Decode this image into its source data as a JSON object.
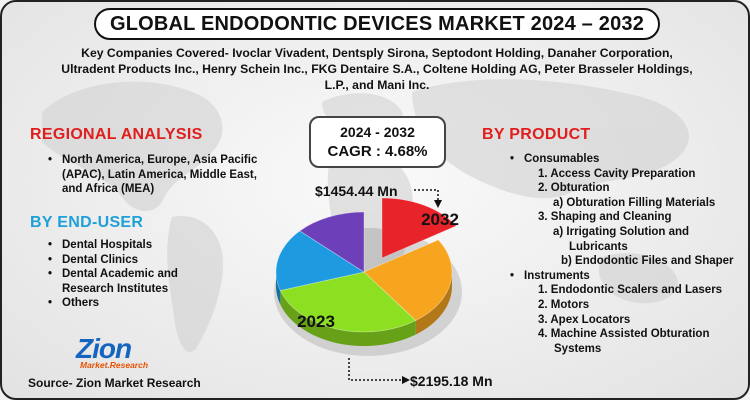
{
  "title": "GLOBAL ENDODONTIC DEVICES MARKET 2024 – 2032",
  "companies_line1": "Key Companies Covered- Ivoclar Vivadent, Dentsply Sirona, Septodont Holding, Danaher Corporation,",
  "companies_line2": "Ultradent Products Inc., Henry Schein Inc., FKG Dentaire S.A., Coltene Holding AG, Peter Brasseler Holdings,",
  "companies_line3": "L.P., and Mani Inc.",
  "regional": {
    "heading": "REGIONAL ANALYSIS",
    "items": [
      "North America, Europe, Asia Pacific (APAC), Latin America, Middle East, and Africa (MEA)"
    ]
  },
  "end_user": {
    "heading": "BY END-USER",
    "items": [
      "Dental Hospitals",
      "Dental Clinics",
      "Dental Academic and Research Institutes",
      "Others"
    ]
  },
  "product": {
    "heading": "BY PRODUCT",
    "consumables": {
      "label": "Consumables",
      "c1": "1. Access Cavity Preparation",
      "c2": "2. Obturation",
      "c2a": "a) Obturation Filling Materials",
      "c3": "3. Shaping and Cleaning",
      "c3a": "a) Irrigating Solution and Lubricants",
      "c3b": "b) Endodontic Files and Shaper"
    },
    "instruments": {
      "label": "Instruments",
      "i1": "1. Endodontic Scalers and Lasers",
      "i2": "2. Motors",
      "i3": "3. Apex Locators",
      "i4": "4. Machine Assisted Obturation Systems"
    }
  },
  "cagr": {
    "period": "2024 - 2032",
    "text": "CAGR : 4.68%"
  },
  "logo": {
    "main": "Zion",
    "sub": "Market.Research"
  },
  "source": "Source- Zion Market Research",
  "chart_data": {
    "type": "pie",
    "title": "",
    "callouts": [
      {
        "label": "2032",
        "value": "$1454.44 Mn",
        "color": "#e8232a"
      },
      {
        "label": "2023",
        "value": "$2195.18 Mn",
        "color": "#8de021"
      }
    ],
    "slices": [
      {
        "label": "2032",
        "fraction": 0.16,
        "color": "#e8232a"
      },
      {
        "label": "",
        "fraction": 0.24,
        "color": "#f7a51e"
      },
      {
        "label": "2023",
        "fraction": 0.3,
        "color": "#8de021"
      },
      {
        "label": "",
        "fraction": 0.17,
        "color": "#1e9be0"
      },
      {
        "label": "",
        "fraction": 0.13,
        "color": "#6d3fb8"
      }
    ]
  }
}
